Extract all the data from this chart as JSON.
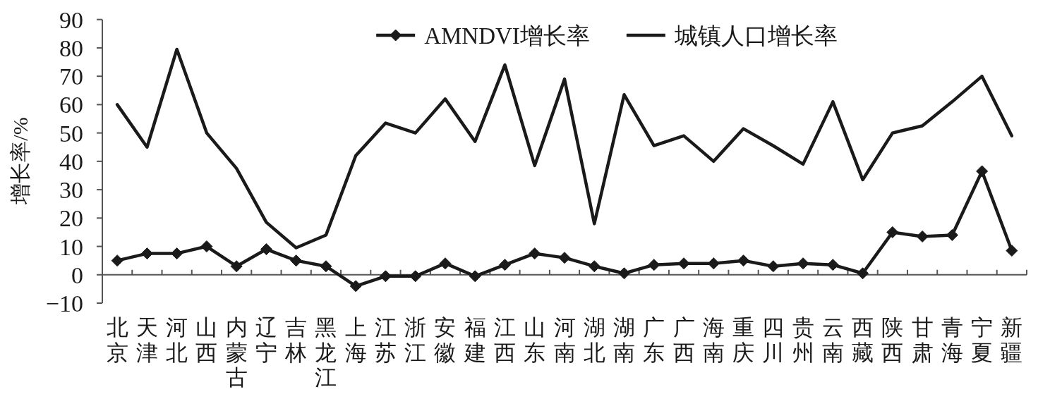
{
  "chart_data": {
    "type": "line",
    "ylabel": "增长率/%",
    "categories": [
      "北京",
      "天津",
      "河北",
      "山西",
      "内蒙古",
      "辽宁",
      "吉林",
      "黑龙江",
      "上海",
      "江苏",
      "浙江",
      "安徽",
      "福建",
      "江西",
      "山东",
      "河南",
      "湖北",
      "湖南",
      "广东",
      "广西",
      "海南",
      "重庆",
      "四川",
      "贵州",
      "云南",
      "西藏",
      "陕西",
      "甘肃",
      "青海",
      "宁夏",
      "新疆"
    ],
    "series": [
      {
        "name": "AMNDVI增长率",
        "color": "#1a1a1a",
        "marker": "diamond",
        "values": [
          5,
          7.5,
          7.5,
          10,
          3,
          9,
          5,
          3,
          -4,
          -0.5,
          -0.5,
          4,
          -0.5,
          3.5,
          7.5,
          6,
          3,
          0.5,
          3.5,
          4,
          4,
          5,
          3,
          4,
          3.5,
          0.5,
          15,
          13.5,
          14,
          36.5,
          8.5
        ]
      },
      {
        "name": "城镇人口增长率",
        "color": "#1a1a1a",
        "marker": "none",
        "values": [
          60,
          45,
          79.5,
          50,
          37.5,
          18.5,
          9.5,
          14,
          42,
          53.5,
          50,
          62,
          47,
          74,
          38.5,
          69,
          18,
          63.5,
          45.5,
          49,
          40,
          51.5,
          45.5,
          39,
          61,
          33.5,
          50,
          52.5,
          61,
          70,
          49
        ]
      }
    ],
    "ylim": [
      -10,
      90
    ],
    "yticks": [
      -10,
      0,
      10,
      20,
      30,
      40,
      50,
      60,
      70,
      80,
      90
    ],
    "legend": "top"
  }
}
